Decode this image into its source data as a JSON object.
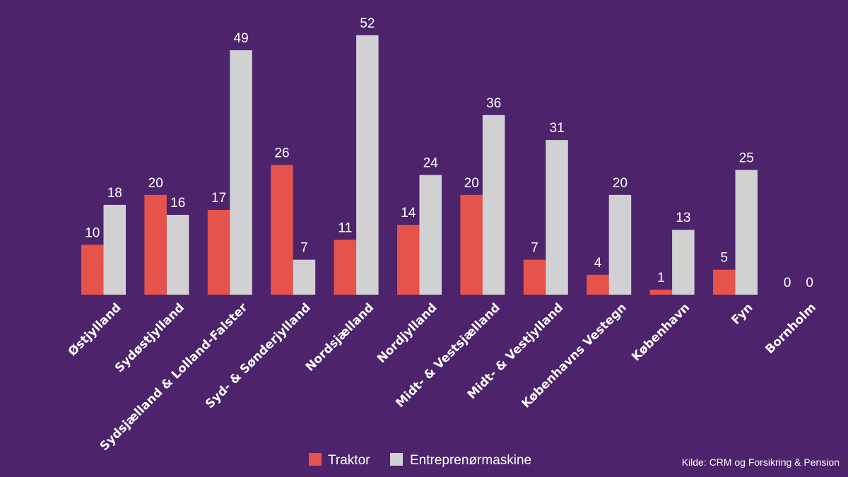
{
  "chart_data": {
    "type": "bar",
    "categories": [
      "Østjylland",
      "Sydøstjylland",
      "Sydsjælland & Lolland-Falster",
      "Syd- & Sønderjylland",
      "Nordsjælland",
      "Nordjylland",
      "Midt- & Vestsjælland",
      "Midt- & Vestjylland",
      "Københavns Vestegn",
      "København",
      "Fyn",
      "Bornholm"
    ],
    "series": [
      {
        "name": "Traktor",
        "color": "#e5534b",
        "values": [
          10,
          20,
          17,
          26,
          11,
          14,
          20,
          7,
          4,
          1,
          5,
          0
        ]
      },
      {
        "name": "Entreprenørmaskine",
        "color": "#d1d1d3",
        "values": [
          18,
          16,
          49,
          7,
          52,
          24,
          36,
          31,
          20,
          13,
          25,
          0
        ]
      }
    ],
    "ylim": [
      0,
      52
    ],
    "grid": false,
    "legend": "bottom-center",
    "title": "",
    "xlabel": "",
    "ylabel": ""
  },
  "legend": {
    "items": [
      {
        "label": "Traktor",
        "color": "#e5534b"
      },
      {
        "label": "Entreprenørmaskine",
        "color": "#d1d1d3"
      }
    ]
  },
  "source": "Kilde: CRM og Forsikring & Pension",
  "colors": {
    "background": "#4d236b",
    "text": "#ffffff"
  }
}
